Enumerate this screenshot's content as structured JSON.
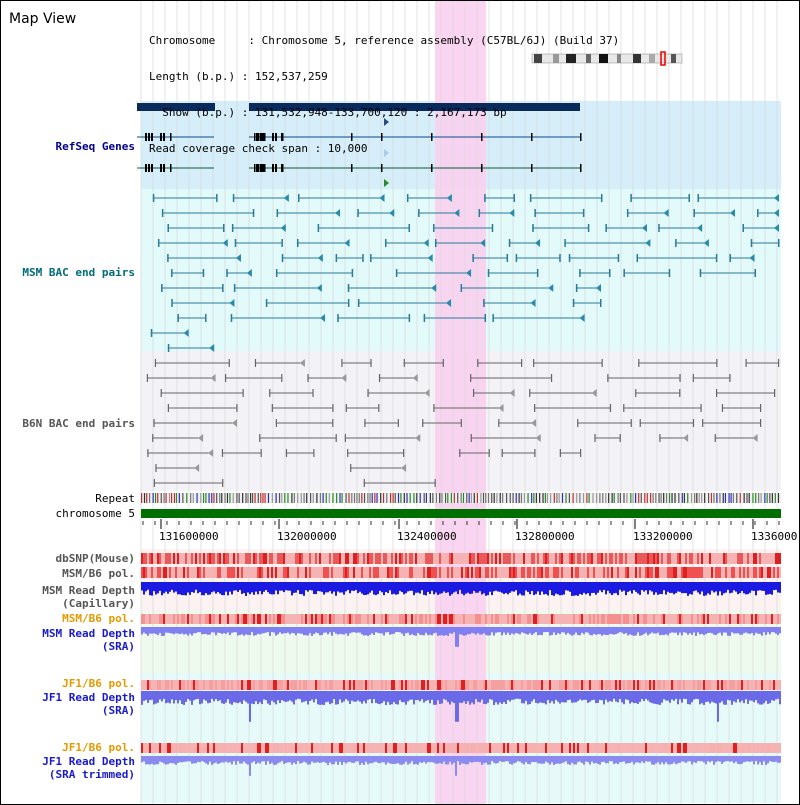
{
  "title": "Map View",
  "info": {
    "chromosome": "Chromosome     : Chromosome 5, reference assembly (C57BL/6J) (Build 37)",
    "length": "Length (b.p.) : 152,537,259",
    "show": "  Show (b.p.) : 131,532,948-133,700,120 : 2,167,173 bp",
    "coverage": "Read coverage check span : 10,000"
  },
  "tracks": {
    "refseq": "RefSeq Genes",
    "msm_bac": "MSM BAC end pairs",
    "b6n_bac": "B6N BAC end pairs",
    "repeat": "Repeat",
    "chromosome": "chromosome 5",
    "dbsnp": "dbSNP(Mouse)",
    "msm_b6_pol_1": "MSM/B6 pol.",
    "msm_read_cap": "MSM Read Depth\n(Capillary)",
    "msm_b6_pol_2": "MSM/B6 pol.",
    "msm_read_sra": "MSM Read Depth\n(SRA)",
    "jf1_b6_pol_1": "JF1/B6 pol.",
    "jf1_read_sra": "JF1 Read Depth\n(SRA)",
    "jf1_b6_pol_2": "JF1/B6 pol.",
    "jf1_read_trim": "JF1 Read Depth\n(SRA trimmed)"
  },
  "axis": {
    "ticks": [
      "131600000",
      "132000000",
      "132400000",
      "132800000",
      "133200000",
      "1336000"
    ]
  },
  "colors": {
    "highlight": "#f9d0ef",
    "refseq_bg": "#d6eefa",
    "bac_bg": "#e2fafa",
    "b6n_bg": "#f3f3f7",
    "gene_dark": "#0a2a5c",
    "bac_line": "#2a7a9a",
    "b6n_line": "#666666",
    "chromosome_bar": "#006f00",
    "snp_red": "#e85a5a",
    "read_blue": "#1a1ae0",
    "read_light": "#8080f0",
    "pol_orange": "#e39b00"
  }
}
